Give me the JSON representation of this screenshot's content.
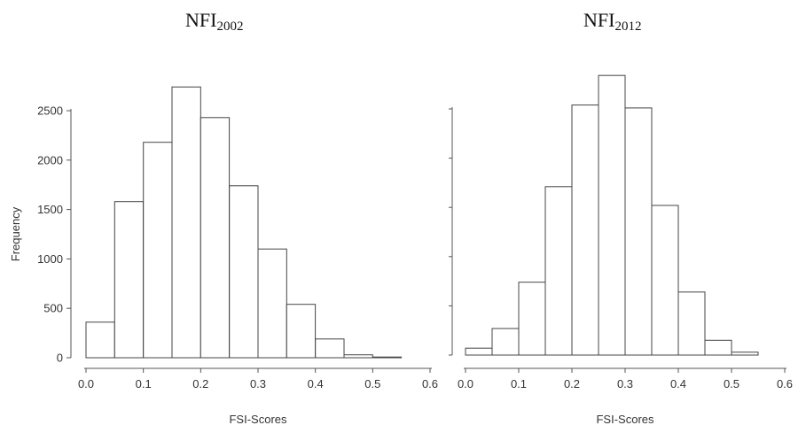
{
  "chart_data": [
    {
      "type": "bar",
      "title": "NFI",
      "title_subscript": "2002",
      "xlabel": "FSI-Scores",
      "ylabel": "Frequency",
      "bin_edges": [
        0.0,
        0.05,
        0.1,
        0.15,
        0.2,
        0.25,
        0.3,
        0.35,
        0.4,
        0.45,
        0.5,
        0.55
      ],
      "values": [
        360,
        1580,
        2180,
        2740,
        2430,
        1740,
        1100,
        540,
        190,
        30,
        5
      ],
      "xlim": [
        0.0,
        0.6
      ],
      "ylim": [
        0,
        2500
      ],
      "xticks": [
        "0.0",
        "0.1",
        "0.2",
        "0.3",
        "0.4",
        "0.5",
        "0.6"
      ],
      "yticks": [
        "0",
        "500",
        "1000",
        "1500",
        "2000",
        "2500"
      ],
      "grid": false
    },
    {
      "type": "bar",
      "title": "NFI",
      "title_subscript": "2012",
      "xlabel": "FSI-Scores",
      "ylabel": "",
      "bin_edges": [
        0.0,
        0.05,
        0.1,
        0.15,
        0.2,
        0.25,
        0.3,
        0.35,
        0.4,
        0.45,
        0.5,
        0.55
      ],
      "values": [
        70,
        270,
        740,
        1710,
        2540,
        2840,
        2510,
        1520,
        640,
        150,
        30
      ],
      "xlim": [
        0.0,
        0.6
      ],
      "ylim": [
        0,
        2500
      ],
      "xticks": [
        "0.0",
        "0.1",
        "0.2",
        "0.3",
        "0.4",
        "0.5",
        "0.6"
      ],
      "yticks": [],
      "grid": false
    }
  ]
}
